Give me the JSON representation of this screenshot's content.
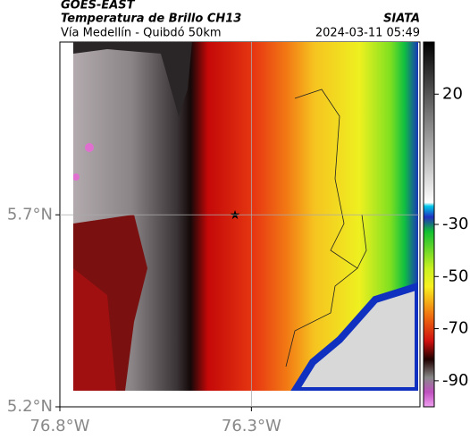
{
  "header": {
    "title": "GOES-EAST",
    "subtitle": "Temperatura de Brillo CH13",
    "source": "SIATA",
    "route": "Vía Medellín - Quibdó 50km",
    "timestamp": "2024-03-11 05:49"
  },
  "map": {
    "xlim": [
      -76.8,
      -75.86
    ],
    "ylim": [
      5.2,
      6.15
    ],
    "xticks": [
      {
        "value": -76.8,
        "label": "76.8°W"
      },
      {
        "value": -76.3,
        "label": "76.3°W"
      }
    ],
    "yticks": [
      {
        "value": 5.2,
        "label": "5.2°N"
      },
      {
        "value": 5.7,
        "label": "5.7°N"
      }
    ],
    "grid": true
  },
  "colorbar": {
    "lim": [
      -100,
      40
    ],
    "ticks": [
      20,
      -30,
      -50,
      -70,
      -90
    ]
  }
}
